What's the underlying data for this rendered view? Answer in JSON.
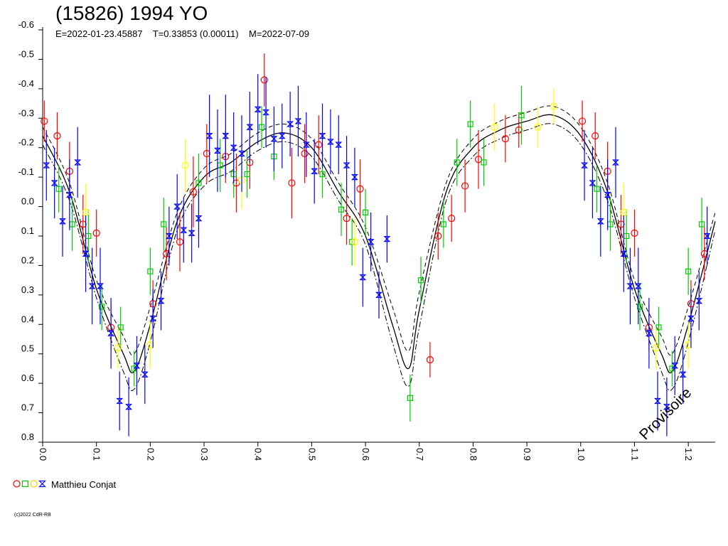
{
  "header": {
    "title": "(15826) 1994 YO",
    "subtitle": "E=2022-01-23.45887    T=0.33853 (0.00011)    M=2022-07-09"
  },
  "legend": {
    "observer": "Matthieu Conjat"
  },
  "footer": {
    "copyright": "(c)2022 CdR-RB"
  },
  "watermark": "Provisoire",
  "colors": {
    "red": "#ff0000",
    "green": "#00cc00",
    "yellow": "#ffff00",
    "blue": "#0000ff"
  },
  "chart_data": {
    "type": "scatter",
    "title": "(15826) 1994 YO",
    "xlabel": "",
    "ylabel": "",
    "xlim": [
      0.0,
      1.25
    ],
    "ylim": [
      -0.6,
      0.8
    ],
    "y_inverted": true,
    "x_ticks": [
      0.0,
      0.1,
      0.2,
      0.3,
      0.4,
      0.5,
      0.6,
      0.7,
      0.8,
      0.9,
      1.0,
      1.1,
      1.2
    ],
    "x_tick_labels": [
      "0.0",
      "0.1",
      "0.2",
      "0.3",
      "0.4",
      "0.5",
      "0.6",
      "0.7",
      "0.8",
      "0.9",
      "1.0",
      "1.1",
      "1.2"
    ],
    "y_ticks": [
      -0.6,
      -0.5,
      -0.4,
      -0.3,
      -0.2,
      -0.1,
      0.0,
      0.1,
      0.2,
      0.3,
      0.4,
      0.5,
      0.6,
      0.7,
      0.8
    ],
    "y_tick_labels": [
      "-0.6",
      "-0.5",
      "-0.4",
      "-0.3",
      "-0.2",
      "-0.1",
      "0.0",
      "0.1",
      "0.2",
      "0.3",
      "0.4",
      "0.5",
      "0.6",
      "0.7",
      "0.8"
    ],
    "fit_curve": {
      "x": [
        0.0,
        0.05,
        0.1,
        0.15,
        0.17,
        0.2,
        0.25,
        0.3,
        0.35,
        0.4,
        0.45,
        0.5,
        0.55,
        0.6,
        0.65,
        0.68,
        0.7,
        0.75,
        0.8,
        0.85,
        0.9,
        0.95,
        1.0,
        1.05,
        1.1,
        1.15,
        1.17,
        1.2,
        1.25
      ],
      "y": [
        -0.24,
        -0.05,
        0.28,
        0.5,
        0.56,
        0.4,
        0.05,
        -0.1,
        -0.15,
        -0.22,
        -0.25,
        -0.2,
        -0.05,
        0.1,
        0.4,
        0.55,
        0.35,
        -0.05,
        -0.2,
        -0.26,
        -0.29,
        -0.31,
        -0.24,
        -0.05,
        0.28,
        0.5,
        0.56,
        0.4,
        0.05
      ]
    },
    "series": [
      {
        "color": "red",
        "marker": "circle",
        "points": [
          {
            "x": 0.003,
            "y": -0.29,
            "err": 0.07
          },
          {
            "x": 0.027,
            "y": -0.24,
            "err": 0.08
          },
          {
            "x": 0.05,
            "y": -0.12,
            "err": 0.1
          },
          {
            "x": 0.075,
            "y": 0.06,
            "err": 0.1
          },
          {
            "x": 0.1,
            "y": 0.09,
            "err": 0.08
          },
          {
            "x": 0.127,
            "y": 0.41,
            "err": 0.08
          },
          {
            "x": 0.205,
            "y": 0.33,
            "err": 0.08
          },
          {
            "x": 0.23,
            "y": 0.16,
            "err": 0.09
          },
          {
            "x": 0.255,
            "y": 0.12,
            "err": 0.1
          },
          {
            "x": 0.28,
            "y": -0.05,
            "err": 0.12
          },
          {
            "x": 0.305,
            "y": -0.18,
            "err": 0.1
          },
          {
            "x": 0.34,
            "y": -0.17,
            "err": 0.09
          },
          {
            "x": 0.36,
            "y": -0.08,
            "err": 0.1
          },
          {
            "x": 0.385,
            "y": -0.15,
            "err": 0.09
          },
          {
            "x": 0.412,
            "y": -0.43,
            "err": 0.09
          },
          {
            "x": 0.463,
            "y": -0.08,
            "err": 0.12
          },
          {
            "x": 0.487,
            "y": -0.18,
            "err": 0.1
          },
          {
            "x": 0.513,
            "y": -0.21,
            "err": 0.1
          },
          {
            "x": 0.565,
            "y": 0.04,
            "err": 0.09
          },
          {
            "x": 0.59,
            "y": -0.06,
            "err": 0.1
          },
          {
            "x": 0.72,
            "y": 0.52,
            "err": 0.06
          },
          {
            "x": 0.735,
            "y": 0.1,
            "err": 0.08
          },
          {
            "x": 0.76,
            "y": 0.04,
            "err": 0.08
          },
          {
            "x": 0.785,
            "y": -0.07,
            "err": 0.09
          },
          {
            "x": 0.81,
            "y": -0.16,
            "err": 0.1
          },
          {
            "x": 0.86,
            "y": -0.23,
            "err": 0.08
          },
          {
            "x": 0.885,
            "y": -0.26,
            "err": 0.06
          },
          {
            "x": 1.003,
            "y": -0.29,
            "err": 0.07
          },
          {
            "x": 1.027,
            "y": -0.24,
            "err": 0.08
          },
          {
            "x": 1.05,
            "y": -0.12,
            "err": 0.1
          },
          {
            "x": 1.075,
            "y": 0.06,
            "err": 0.1
          },
          {
            "x": 1.1,
            "y": 0.09,
            "err": 0.08
          },
          {
            "x": 1.127,
            "y": 0.41,
            "err": 0.08
          },
          {
            "x": 1.205,
            "y": 0.33,
            "err": 0.08
          },
          {
            "x": 1.23,
            "y": 0.16,
            "err": 0.09
          }
        ]
      },
      {
        "color": "green",
        "marker": "square",
        "points": [
          {
            "x": 0.03,
            "y": -0.06,
            "err": 0.08
          },
          {
            "x": 0.055,
            "y": 0.06,
            "err": 0.09
          },
          {
            "x": 0.085,
            "y": 0.1,
            "err": 0.09
          },
          {
            "x": 0.11,
            "y": 0.34,
            "err": 0.08
          },
          {
            "x": 0.145,
            "y": 0.41,
            "err": 0.07
          },
          {
            "x": 0.17,
            "y": 0.55,
            "err": 0.06
          },
          {
            "x": 0.2,
            "y": 0.22,
            "err": 0.08
          },
          {
            "x": 0.225,
            "y": 0.06,
            "err": 0.09
          },
          {
            "x": 0.29,
            "y": -0.08,
            "err": 0.1
          },
          {
            "x": 0.33,
            "y": -0.14,
            "err": 0.09
          },
          {
            "x": 0.355,
            "y": -0.11,
            "err": 0.08
          },
          {
            "x": 0.38,
            "y": -0.11,
            "err": 0.08
          },
          {
            "x": 0.407,
            "y": -0.27,
            "err": 0.07
          },
          {
            "x": 0.43,
            "y": -0.17,
            "err": 0.08
          },
          {
            "x": 0.52,
            "y": -0.11,
            "err": 0.08
          },
          {
            "x": 0.555,
            "y": 0.01,
            "err": 0.09
          },
          {
            "x": 0.575,
            "y": 0.12,
            "err": 0.08
          },
          {
            "x": 0.6,
            "y": 0.02,
            "err": 0.08
          },
          {
            "x": 0.683,
            "y": 0.65,
            "err": 0.08
          },
          {
            "x": 0.703,
            "y": 0.25,
            "err": 0.08
          },
          {
            "x": 0.745,
            "y": 0.06,
            "err": 0.08
          },
          {
            "x": 0.77,
            "y": -0.15,
            "err": 0.08
          },
          {
            "x": 0.795,
            "y": -0.28,
            "err": 0.08
          },
          {
            "x": 0.82,
            "y": -0.15,
            "err": 0.08
          },
          {
            "x": 0.89,
            "y": -0.31,
            "err": 0.1
          },
          {
            "x": 1.03,
            "y": -0.06,
            "err": 0.08
          },
          {
            "x": 1.055,
            "y": 0.06,
            "err": 0.09
          },
          {
            "x": 1.085,
            "y": 0.1,
            "err": 0.09
          },
          {
            "x": 1.11,
            "y": 0.34,
            "err": 0.08
          },
          {
            "x": 1.145,
            "y": 0.41,
            "err": 0.07
          },
          {
            "x": 1.17,
            "y": 0.55,
            "err": 0.06
          },
          {
            "x": 1.2,
            "y": 0.22,
            "err": 0.08
          },
          {
            "x": 1.225,
            "y": 0.06,
            "err": 0.09
          }
        ]
      },
      {
        "color": "yellow",
        "marker": "circle",
        "points": [
          {
            "x": 0.08,
            "y": 0.02,
            "err": 0.1
          },
          {
            "x": 0.14,
            "y": 0.48,
            "err": 0.07
          },
          {
            "x": 0.2,
            "y": 0.47,
            "err": 0.08
          },
          {
            "x": 0.265,
            "y": -0.14,
            "err": 0.09
          },
          {
            "x": 0.37,
            "y": -0.09,
            "err": 0.1
          },
          {
            "x": 0.58,
            "y": 0.12,
            "err": 0.08
          },
          {
            "x": 0.84,
            "y": -0.27,
            "err": 0.08
          },
          {
            "x": 0.92,
            "y": -0.27,
            "err": 0.07
          },
          {
            "x": 0.95,
            "y": -0.34,
            "err": 0.06
          },
          {
            "x": 1.08,
            "y": 0.02,
            "err": 0.1
          },
          {
            "x": 1.14,
            "y": 0.48,
            "err": 0.07
          },
          {
            "x": 1.2,
            "y": 0.47,
            "err": 0.08
          }
        ]
      },
      {
        "color": "blue",
        "marker": "hourglass",
        "points": [
          {
            "x": 0.007,
            "y": -0.14,
            "err": 0.12
          },
          {
            "x": 0.022,
            "y": -0.08,
            "err": 0.12
          },
          {
            "x": 0.037,
            "y": 0.05,
            "err": 0.12
          },
          {
            "x": 0.05,
            "y": -0.04,
            "err": 0.12
          },
          {
            "x": 0.065,
            "y": -0.15,
            "err": 0.12
          },
          {
            "x": 0.08,
            "y": 0.16,
            "err": 0.13
          },
          {
            "x": 0.092,
            "y": 0.27,
            "err": 0.13
          },
          {
            "x": 0.107,
            "y": 0.27,
            "err": 0.13
          },
          {
            "x": 0.127,
            "y": 0.43,
            "err": 0.12
          },
          {
            "x": 0.143,
            "y": 0.66,
            "err": 0.1
          },
          {
            "x": 0.16,
            "y": 0.68,
            "err": 0.1
          },
          {
            "x": 0.175,
            "y": 0.54,
            "err": 0.1
          },
          {
            "x": 0.19,
            "y": 0.57,
            "err": 0.1
          },
          {
            "x": 0.205,
            "y": 0.38,
            "err": 0.1
          },
          {
            "x": 0.22,
            "y": 0.32,
            "err": 0.1
          },
          {
            "x": 0.235,
            "y": 0.1,
            "err": 0.1
          },
          {
            "x": 0.25,
            "y": 0.0,
            "err": 0.11
          },
          {
            "x": 0.262,
            "y": 0.08,
            "err": 0.11
          },
          {
            "x": 0.277,
            "y": 0.09,
            "err": 0.1
          },
          {
            "x": 0.29,
            "y": 0.04,
            "err": 0.1
          },
          {
            "x": 0.31,
            "y": -0.24,
            "err": 0.14
          },
          {
            "x": 0.325,
            "y": -0.19,
            "err": 0.14
          },
          {
            "x": 0.34,
            "y": -0.24,
            "err": 0.14
          },
          {
            "x": 0.355,
            "y": -0.2,
            "err": 0.12
          },
          {
            "x": 0.37,
            "y": -0.18,
            "err": 0.13
          },
          {
            "x": 0.385,
            "y": -0.27,
            "err": 0.12
          },
          {
            "x": 0.4,
            "y": -0.33,
            "err": 0.12
          },
          {
            "x": 0.415,
            "y": -0.32,
            "err": 0.12
          },
          {
            "x": 0.43,
            "y": -0.23,
            "err": 0.11
          },
          {
            "x": 0.445,
            "y": -0.24,
            "err": 0.11
          },
          {
            "x": 0.46,
            "y": -0.28,
            "err": 0.11
          },
          {
            "x": 0.475,
            "y": -0.29,
            "err": 0.12
          },
          {
            "x": 0.49,
            "y": -0.21,
            "err": 0.11
          },
          {
            "x": 0.505,
            "y": -0.12,
            "err": 0.11
          },
          {
            "x": 0.52,
            "y": -0.24,
            "err": 0.11
          },
          {
            "x": 0.535,
            "y": -0.22,
            "err": 0.11
          },
          {
            "x": 0.55,
            "y": -0.21,
            "err": 0.1
          },
          {
            "x": 0.565,
            "y": -0.14,
            "err": 0.1
          },
          {
            "x": 0.58,
            "y": -0.1,
            "err": 0.1
          },
          {
            "x": 0.595,
            "y": 0.24,
            "err": 0.1
          },
          {
            "x": 0.61,
            "y": 0.12,
            "err": 0.1
          },
          {
            "x": 0.625,
            "y": 0.3,
            "err": 0.08
          },
          {
            "x": 0.64,
            "y": 0.11,
            "err": 0.08
          },
          {
            "x": 1.007,
            "y": -0.14,
            "err": 0.12
          },
          {
            "x": 1.022,
            "y": -0.08,
            "err": 0.12
          },
          {
            "x": 1.037,
            "y": 0.05,
            "err": 0.12
          },
          {
            "x": 1.05,
            "y": -0.04,
            "err": 0.12
          },
          {
            "x": 1.065,
            "y": -0.15,
            "err": 0.12
          },
          {
            "x": 1.08,
            "y": 0.16,
            "err": 0.13
          },
          {
            "x": 1.092,
            "y": 0.27,
            "err": 0.13
          },
          {
            "x": 1.107,
            "y": 0.27,
            "err": 0.13
          },
          {
            "x": 1.127,
            "y": 0.43,
            "err": 0.12
          },
          {
            "x": 1.143,
            "y": 0.66,
            "err": 0.1
          },
          {
            "x": 1.16,
            "y": 0.68,
            "err": 0.1
          },
          {
            "x": 1.175,
            "y": 0.54,
            "err": 0.1
          },
          {
            "x": 1.19,
            "y": 0.57,
            "err": 0.1
          },
          {
            "x": 1.205,
            "y": 0.38,
            "err": 0.1
          },
          {
            "x": 1.22,
            "y": 0.32,
            "err": 0.1
          },
          {
            "x": 1.235,
            "y": 0.1,
            "err": 0.1
          }
        ]
      }
    ]
  }
}
